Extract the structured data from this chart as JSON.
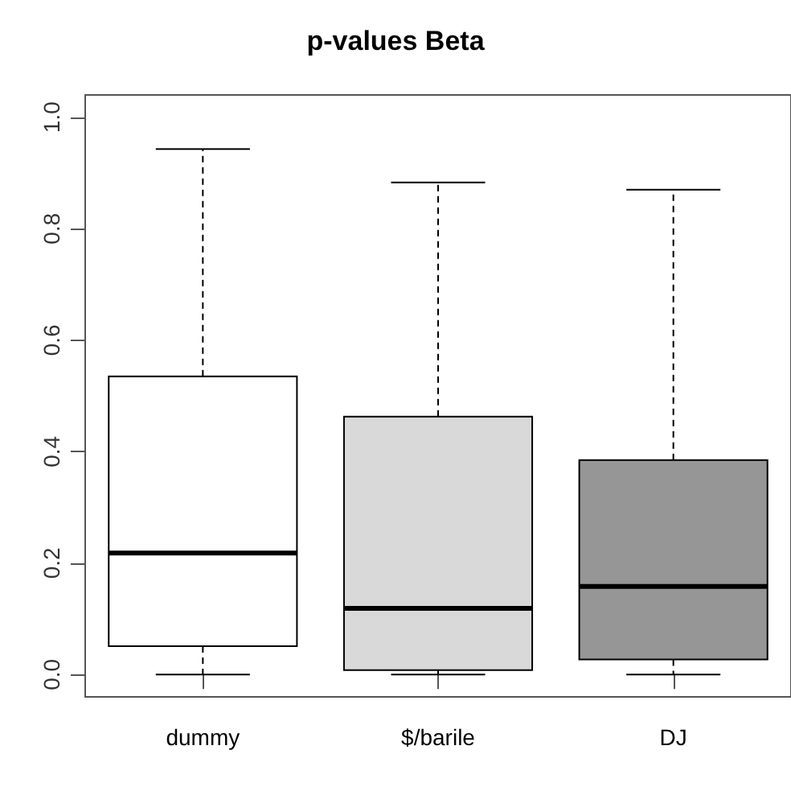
{
  "chart_data": {
    "type": "box",
    "title": "p-values Beta",
    "categories": [
      "dummy",
      "$/barile",
      "DJ"
    ],
    "boxes": [
      {
        "low": 0,
        "q1": 0.051,
        "median": 0.218,
        "q3": 0.535,
        "high": 0.943
      },
      {
        "low": 0,
        "q1": 0.008,
        "median": 0.119,
        "q3": 0.463,
        "high": 0.883
      },
      {
        "low": 0,
        "q1": 0.027,
        "median": 0.158,
        "q3": 0.385,
        "high": 0.87
      }
    ],
    "colors": [
      "#ffffff",
      "#d9d9d9",
      "#969696"
    ],
    "ylim": [
      -0.04,
      1.04
    ],
    "yticks": [
      {
        "value": 0,
        "label": "0.0"
      },
      {
        "value": 0.2,
        "label": "0.2"
      },
      {
        "value": 0.4,
        "label": "0.4"
      },
      {
        "value": 0.6,
        "label": "0.6"
      },
      {
        "value": 0.8,
        "label": "0.8"
      },
      {
        "value": 1,
        "label": "1.0"
      }
    ],
    "grid": false
  }
}
